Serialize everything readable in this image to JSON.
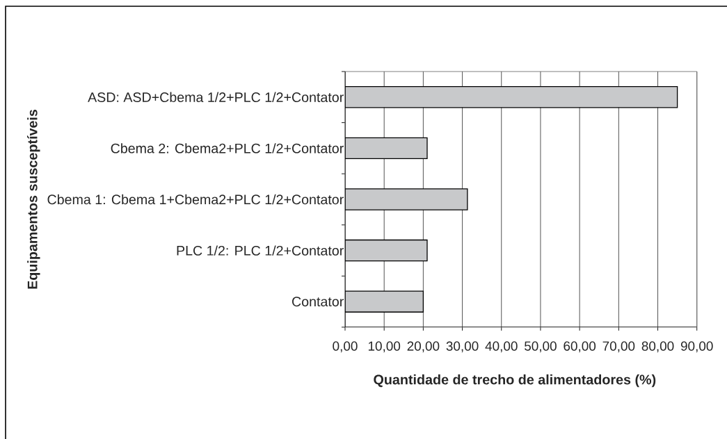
{
  "chart_data": {
    "type": "bar",
    "orientation": "horizontal",
    "xlabel": "Quantidade de trecho de alimentadores (%)",
    "ylabel": "Equipamentos susceptíveis",
    "categories": [
      "ASD: ASD+Cbema 1/2+PLC 1/2+Contator",
      "Cbema 2: Cbema2+PLC 1/2+Contator",
      "Cbema 1: Cbema 1+Cbema2+PLC 1/2+Contator",
      "PLC 1/2: PLC 1/2+Contator",
      "Contator"
    ],
    "values": [
      85,
      21,
      31.3,
      21,
      20
    ],
    "color": "#c8c9cb",
    "xlim": [
      0,
      90
    ],
    "xticks": [
      {
        "value": 0,
        "label": "0,00"
      },
      {
        "value": 10,
        "label": "10,00"
      },
      {
        "value": 20,
        "label": "20,00"
      },
      {
        "value": 30,
        "label": "30,00"
      },
      {
        "value": 40,
        "label": "40,00"
      },
      {
        "value": 50,
        "label": "50,00"
      },
      {
        "value": 60,
        "label": "60,00"
      },
      {
        "value": 70,
        "label": "70,00"
      },
      {
        "value": 80,
        "label": "80,00"
      },
      {
        "value": 90,
        "label": "90,00"
      }
    ],
    "grid": "x"
  }
}
